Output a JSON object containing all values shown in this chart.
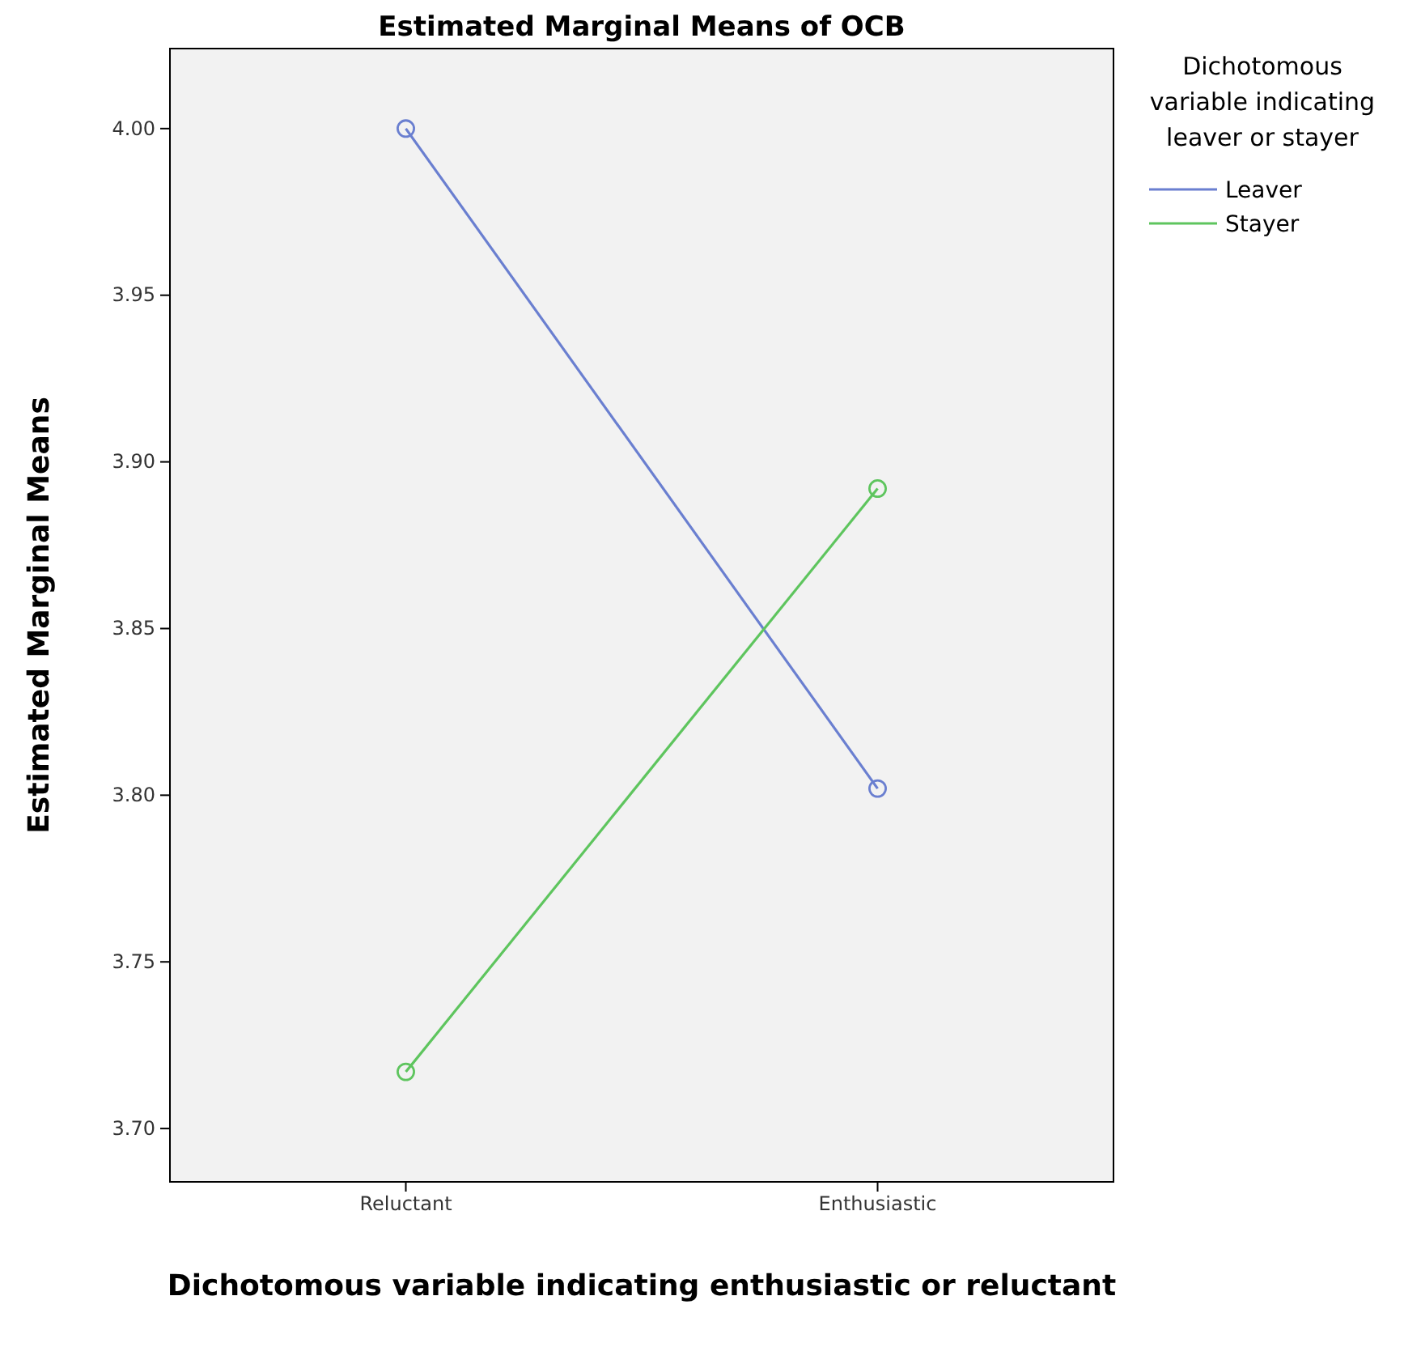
{
  "chart_data": {
    "type": "line",
    "title": "Estimated Marginal Means of OCB",
    "xlabel": "Dichotomous variable indicating enthusiastic or reluctant",
    "ylabel": "Estimated Marginal Means",
    "legend_title": "Dichotomous variable indicating leaver or stayer",
    "categories": [
      "Reluctant",
      "Enthusiastic"
    ],
    "series": [
      {
        "name": "Leaver",
        "color": "#6a7fd0",
        "values": [
          4.0,
          3.802
        ]
      },
      {
        "name": "Stayer",
        "color": "#5ec55e",
        "values": [
          3.717,
          3.892
        ]
      }
    ],
    "ylim": [
      3.684,
      4.024
    ],
    "yticks": [
      {
        "value": 3.7,
        "label": "3.70"
      },
      {
        "value": 3.75,
        "label": "3.75"
      },
      {
        "value": 3.8,
        "label": "3.80"
      },
      {
        "value": 3.85,
        "label": "3.85"
      },
      {
        "value": 3.9,
        "label": "3.90"
      },
      {
        "value": 3.95,
        "label": "3.95"
      },
      {
        "value": 4.0,
        "label": "4.00"
      }
    ],
    "grid": false,
    "legend": "top right",
    "marker": "circle",
    "line_style": "solid"
  }
}
